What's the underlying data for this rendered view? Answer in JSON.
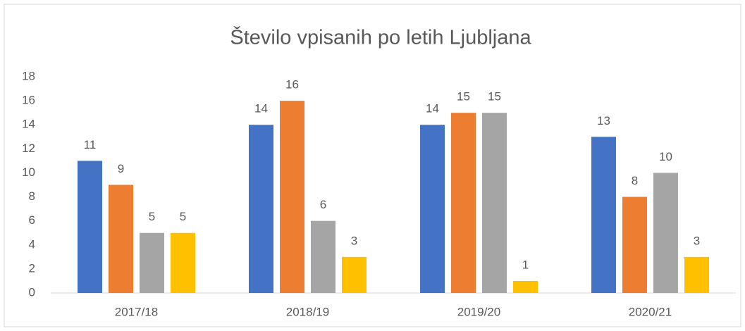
{
  "chart_data": {
    "type": "bar",
    "title": "Število vpisanih po letih Ljubljana",
    "categories": [
      "2017/18",
      "2018/19",
      "2019/20",
      "2020/21"
    ],
    "series": [
      {
        "color": "#4472c4",
        "values": [
          11,
          14,
          14,
          13
        ]
      },
      {
        "color": "#ed7d31",
        "values": [
          9,
          16,
          15,
          8
        ]
      },
      {
        "color": "#a5a5a5",
        "values": [
          5,
          6,
          15,
          10
        ]
      },
      {
        "color": "#ffc000",
        "values": [
          5,
          3,
          1,
          3
        ]
      }
    ],
    "ylim": [
      0,
      18
    ],
    "yticks": [
      0,
      2,
      4,
      6,
      8,
      10,
      12,
      14,
      16,
      18
    ],
    "grid": false
  }
}
